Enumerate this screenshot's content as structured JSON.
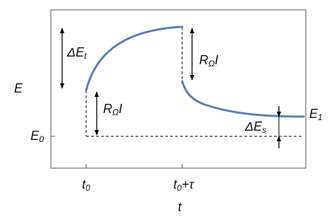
{
  "axes": {
    "y_label": "E",
    "x_label": "t"
  },
  "ticks": {
    "y": [
      {
        "base": "E",
        "sub": "0"
      }
    ],
    "x": [
      {
        "base": "t",
        "sub": "0"
      },
      {
        "base": "t",
        "sub": "0",
        "tail": "+τ"
      }
    ]
  },
  "annotations": {
    "delta_e_t": {
      "base": "ΔE",
      "sub": "t"
    },
    "ir_drop_start": {
      "base": "R",
      "sub": "Ω",
      "tail": "I"
    },
    "ir_drop_end": {
      "base": "R",
      "sub": "Ω",
      "tail": "I"
    },
    "delta_e_s": {
      "base": "ΔE",
      "sub": "s"
    },
    "e1": {
      "base": "E",
      "sub": "1"
    }
  }
}
